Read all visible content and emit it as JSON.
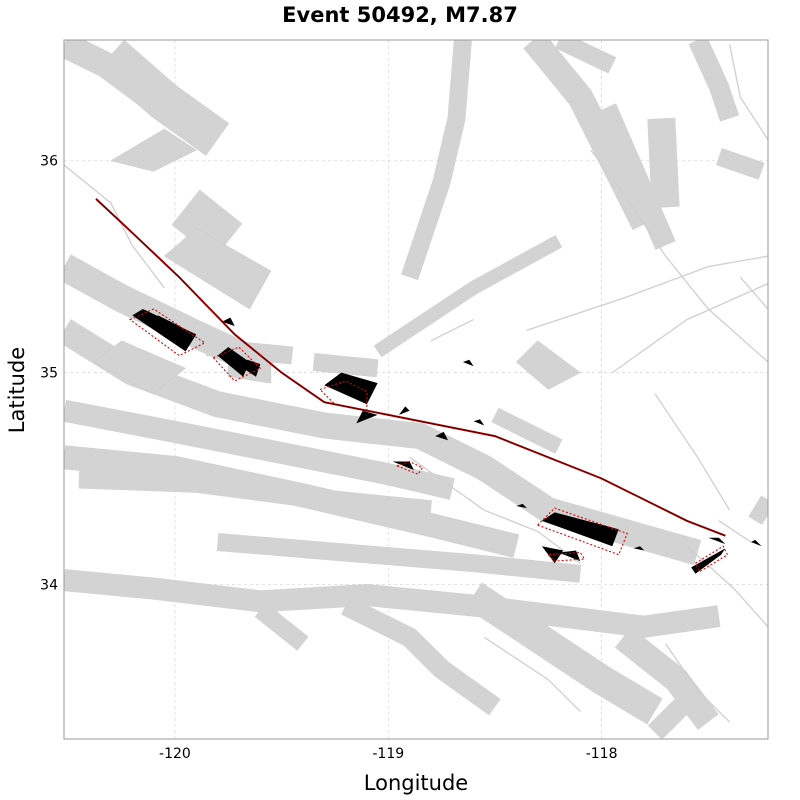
{
  "figure": {
    "title": "Event 50492, M7.87",
    "xlabel": "Longitude",
    "ylabel": "Latitude"
  },
  "chart_data": {
    "type": "map",
    "title": "Event 50492, M7.87",
    "xlabel": "Longitude",
    "ylabel": "Latitude",
    "xlim": [
      -120.52,
      -117.22
    ],
    "ylim": [
      33.27,
      36.57
    ],
    "xticks": [
      -120,
      -119,
      -118
    ],
    "yticks": [
      34,
      35,
      36
    ],
    "xtick_labels": [
      "-120",
      "-119",
      "-118"
    ],
    "ytick_labels": [
      "34",
      "35",
      "36"
    ],
    "grid": true,
    "colors": {
      "fault_zones": "#d3d3d3",
      "fault_traces": "#cfcfcf",
      "slip_patches": "#000000",
      "patch_outlines": "#e00000",
      "rupture_trace": "#b30000"
    },
    "fault_zones": [
      {
        "w": 26,
        "pts": [
          [
            -120.52,
            36.55
          ],
          [
            -120.32,
            36.45
          ],
          [
            -120.12,
            36.3
          ]
        ]
      },
      {
        "w": 40,
        "pts": [
          [
            -120.3,
            36.5
          ],
          [
            -120.05,
            36.28
          ],
          [
            -119.8,
            36.1
          ]
        ]
      },
      {
        "w": 45,
        "pts": [
          [
            -119.95,
            35.78
          ],
          [
            -119.75,
            35.62
          ]
        ]
      },
      {
        "w": 28,
        "pts": [
          [
            -120.52,
            35.5
          ],
          [
            -120.25,
            35.35
          ],
          [
            -119.9,
            35.18
          ],
          [
            -119.55,
            35.02
          ]
        ]
      },
      {
        "w": 26,
        "pts": [
          [
            -120.52,
            35.2
          ],
          [
            -120.2,
            35.0
          ],
          [
            -119.8,
            34.85
          ],
          [
            -119.3,
            34.75
          ],
          [
            -118.85,
            34.7
          ],
          [
            -118.55,
            34.55
          ],
          [
            -118.25,
            34.35
          ],
          [
            -117.9,
            34.25
          ],
          [
            -117.55,
            34.15
          ]
        ]
      },
      {
        "w": 22,
        "pts": [
          [
            -120.52,
            34.82
          ],
          [
            -120.0,
            34.72
          ],
          [
            -119.5,
            34.62
          ],
          [
            -119.0,
            34.52
          ],
          [
            -118.7,
            34.45
          ]
        ]
      },
      {
        "w": 24,
        "pts": [
          [
            -120.52,
            34.6
          ],
          [
            -120.0,
            34.55
          ],
          [
            -119.4,
            34.42
          ],
          [
            -118.8,
            34.28
          ],
          [
            -118.4,
            34.18
          ]
        ]
      },
      {
        "w": 20,
        "pts": [
          [
            -120.45,
            34.5
          ],
          [
            -119.9,
            34.48
          ],
          [
            -119.3,
            34.4
          ],
          [
            -118.8,
            34.35
          ]
        ]
      },
      {
        "w": 22,
        "pts": [
          [
            -120.52,
            34.02
          ],
          [
            -120.1,
            33.98
          ],
          [
            -119.6,
            33.92
          ],
          [
            -119.1,
            33.95
          ],
          [
            -118.6,
            33.9
          ],
          [
            -118.2,
            33.85
          ],
          [
            -117.8,
            33.8
          ],
          [
            -117.45,
            33.85
          ]
        ]
      },
      {
        "w": 18,
        "pts": [
          [
            -119.8,
            34.2
          ],
          [
            -119.2,
            34.15
          ],
          [
            -118.6,
            34.1
          ],
          [
            -118.1,
            34.05
          ]
        ]
      },
      {
        "w": 20,
        "pts": [
          [
            -119.2,
            33.9
          ],
          [
            -118.9,
            33.75
          ],
          [
            -118.75,
            33.6
          ],
          [
            -118.5,
            33.42
          ]
        ]
      },
      {
        "w": 18,
        "pts": [
          [
            -119.6,
            33.88
          ],
          [
            -119.4,
            33.72
          ]
        ]
      },
      {
        "w": 30,
        "pts": [
          [
            -118.6,
            33.95
          ],
          [
            -118.3,
            33.75
          ],
          [
            -118.0,
            33.55
          ],
          [
            -117.75,
            33.4
          ]
        ]
      },
      {
        "w": 26,
        "pts": [
          [
            -117.9,
            33.75
          ],
          [
            -117.65,
            33.55
          ],
          [
            -117.5,
            33.35
          ]
        ]
      },
      {
        "w": 20,
        "pts": [
          [
            -117.75,
            33.3
          ],
          [
            -117.6,
            33.45
          ]
        ]
      },
      {
        "w": 18,
        "pts": [
          [
            -119.35,
            35.05
          ],
          [
            -119.05,
            35.02
          ]
        ]
      },
      {
        "w": 16,
        "pts": [
          [
            -118.5,
            34.8
          ],
          [
            -118.2,
            34.65
          ]
        ]
      },
      {
        "w": 18,
        "pts": [
          [
            -119.85,
            35.12
          ],
          [
            -119.45,
            35.08
          ]
        ]
      },
      {
        "w": 14,
        "pts": [
          [
            -119.05,
            35.1
          ],
          [
            -118.6,
            35.4
          ],
          [
            -118.2,
            35.62
          ]
        ]
      },
      {
        "w": 18,
        "pts": [
          [
            -118.65,
            36.57
          ],
          [
            -118.68,
            36.2
          ],
          [
            -118.75,
            35.9
          ],
          [
            -118.9,
            35.45
          ]
        ]
      },
      {
        "w": 26,
        "pts": [
          [
            -118.32,
            36.57
          ],
          [
            -118.1,
            36.3
          ],
          [
            -117.95,
            36.0
          ],
          [
            -117.8,
            35.7
          ]
        ]
      },
      {
        "w": 22,
        "pts": [
          [
            -117.98,
            36.25
          ],
          [
            -117.85,
            35.95
          ],
          [
            -117.7,
            35.6
          ]
        ]
      },
      {
        "w": 28,
        "pts": [
          [
            -117.72,
            36.2
          ],
          [
            -117.7,
            35.78
          ]
        ]
      },
      {
        "w": 20,
        "pts": [
          [
            -117.55,
            36.57
          ],
          [
            -117.45,
            36.35
          ],
          [
            -117.4,
            36.2
          ]
        ]
      },
      {
        "w": 18,
        "pts": [
          [
            -117.45,
            36.02
          ],
          [
            -117.25,
            35.95
          ]
        ]
      },
      {
        "w": 18,
        "pts": [
          [
            -118.2,
            36.57
          ],
          [
            -117.95,
            36.45
          ]
        ]
      },
      {
        "w": 16,
        "pts": [
          [
            -117.28,
            34.3
          ],
          [
            -117.22,
            34.4
          ]
        ]
      }
    ],
    "fault_polygons": [
      [
        [
          -119.9,
          35.68
        ],
        [
          -119.55,
          35.48
        ],
        [
          -119.65,
          35.3
        ],
        [
          -120.05,
          35.55
        ]
      ],
      [
        [
          -120.05,
          36.15
        ],
        [
          -120.3,
          36.0
        ],
        [
          -120.1,
          35.95
        ],
        [
          -119.9,
          36.05
        ]
      ],
      [
        [
          -118.3,
          35.15
        ],
        [
          -118.1,
          35.0
        ],
        [
          -118.25,
          34.92
        ],
        [
          -118.4,
          35.05
        ]
      ],
      [
        [
          -120.38,
          35.05
        ],
        [
          -120.1,
          34.9
        ],
        [
          -119.95,
          35.02
        ],
        [
          -120.25,
          35.15
        ]
      ],
      [
        [
          -119.75,
          35.12
        ],
        [
          -119.55,
          35.08
        ],
        [
          -119.55,
          34.95
        ],
        [
          -119.75,
          34.98
        ]
      ]
    ],
    "fault_traces": [
      [
        [
          -120.52,
          35.98
        ],
        [
          -120.3,
          35.8
        ],
        [
          -120.2,
          35.6
        ],
        [
          -120.05,
          35.4
        ]
      ],
      [
        [
          -117.4,
          36.55
        ],
        [
          -117.35,
          36.3
        ],
        [
          -117.22,
          36.1
        ]
      ],
      [
        [
          -118.05,
          36.05
        ],
        [
          -117.9,
          35.85
        ],
        [
          -117.7,
          35.55
        ],
        [
          -117.5,
          35.3
        ],
        [
          -117.22,
          35.05
        ]
      ],
      [
        [
          -118.35,
          35.2
        ],
        [
          -117.9,
          35.35
        ],
        [
          -117.5,
          35.5
        ],
        [
          -117.22,
          35.55
        ]
      ],
      [
        [
          -117.95,
          35.0
        ],
        [
          -117.6,
          35.25
        ],
        [
          -117.22,
          35.42
        ]
      ],
      [
        [
          -117.35,
          35.45
        ],
        [
          -117.22,
          35.3
        ]
      ],
      [
        [
          -117.75,
          34.9
        ],
        [
          -117.55,
          34.6
        ],
        [
          -117.4,
          34.35
        ]
      ],
      [
        [
          -118.9,
          34.6
        ],
        [
          -118.55,
          34.35
        ],
        [
          -118.3,
          34.25
        ],
        [
          -118.1,
          34.1
        ]
      ],
      [
        [
          -117.6,
          34.18
        ],
        [
          -117.38,
          33.98
        ],
        [
          -117.22,
          33.8
        ]
      ],
      [
        [
          -117.7,
          33.72
        ],
        [
          -117.55,
          33.5
        ],
        [
          -117.4,
          33.35
        ]
      ],
      [
        [
          -118.55,
          33.75
        ],
        [
          -118.25,
          33.55
        ],
        [
          -118.1,
          33.4
        ]
      ],
      [
        [
          -117.45,
          34.3
        ],
        [
          -117.3,
          34.2
        ]
      ],
      [
        [
          -118.8,
          35.15
        ],
        [
          -118.6,
          35.25
        ]
      ]
    ],
    "slip_patches": [
      [
        [
          -120.2,
          35.27
        ],
        [
          -119.95,
          35.1
        ],
        [
          -119.9,
          35.18
        ],
        [
          -120.15,
          35.3
        ]
      ],
      [
        [
          -120.12,
          35.22
        ],
        [
          -120.02,
          35.16
        ],
        [
          -119.98,
          35.22
        ],
        [
          -120.08,
          35.27
        ]
      ],
      [
        [
          -119.8,
          35.08
        ],
        [
          -119.68,
          34.98
        ],
        [
          -119.65,
          35.05
        ],
        [
          -119.75,
          35.12
        ]
      ],
      [
        [
          -119.68,
          35.02
        ],
        [
          -119.62,
          34.98
        ],
        [
          -119.6,
          35.04
        ],
        [
          -119.66,
          35.06
        ]
      ],
      [
        [
          -119.3,
          34.94
        ],
        [
          -119.1,
          34.85
        ],
        [
          -119.05,
          34.95
        ],
        [
          -119.22,
          35.0
        ]
      ],
      [
        [
          -119.05,
          34.8
        ],
        [
          -119.15,
          34.76
        ],
        [
          -119.12,
          34.82
        ]
      ],
      [
        [
          -118.98,
          34.58
        ],
        [
          -118.88,
          34.54
        ],
        [
          -118.9,
          34.58
        ]
      ],
      [
        [
          -118.28,
          34.3
        ],
        [
          -117.95,
          34.18
        ],
        [
          -117.92,
          34.26
        ],
        [
          -118.22,
          34.34
        ]
      ],
      [
        [
          -118.2,
          34.15
        ],
        [
          -118.1,
          34.11
        ],
        [
          -118.12,
          34.16
        ]
      ],
      [
        [
          -118.28,
          34.18
        ],
        [
          -118.22,
          34.1
        ],
        [
          -118.18,
          34.16
        ]
      ],
      [
        [
          -117.58,
          34.08
        ],
        [
          -117.42,
          34.17
        ],
        [
          -117.44,
          34.14
        ],
        [
          -117.56,
          34.05
        ]
      ]
    ],
    "small_patches": [
      [
        [
          -119.78,
          35.24
        ],
        [
          -119.72,
          35.22
        ],
        [
          -119.74,
          35.26
        ]
      ],
      [
        [
          -118.78,
          34.7
        ],
        [
          -118.72,
          34.68
        ],
        [
          -118.74,
          34.72
        ]
      ],
      [
        [
          -118.9,
          34.82
        ],
        [
          -118.95,
          34.8
        ],
        [
          -118.92,
          34.84
        ]
      ],
      [
        [
          -118.6,
          34.77
        ],
        [
          -118.55,
          34.75
        ],
        [
          -118.57,
          34.78
        ]
      ],
      [
        [
          -118.65,
          35.05
        ],
        [
          -118.6,
          35.03
        ],
        [
          -118.62,
          35.06
        ]
      ],
      [
        [
          -118.4,
          34.37
        ],
        [
          -118.35,
          34.36
        ],
        [
          -118.37,
          34.38
        ]
      ],
      [
        [
          -117.85,
          34.17
        ],
        [
          -117.8,
          34.16
        ],
        [
          -117.82,
          34.18
        ]
      ],
      [
        [
          -117.5,
          34.22
        ],
        [
          -117.42,
          34.19
        ],
        [
          -117.45,
          34.22
        ]
      ],
      [
        [
          -117.3,
          34.2
        ],
        [
          -117.25,
          34.18
        ],
        [
          -117.28,
          34.21
        ]
      ]
    ],
    "patch_outlines": [
      [
        [
          -120.21,
          35.25
        ],
        [
          -120.1,
          35.3
        ],
        [
          -119.86,
          35.14
        ],
        [
          -119.98,
          35.08
        ]
      ],
      [
        [
          -119.82,
          35.07
        ],
        [
          -119.7,
          35.12
        ],
        [
          -119.6,
          35.02
        ],
        [
          -119.72,
          34.96
        ]
      ],
      [
        [
          -119.32,
          34.92
        ],
        [
          -119.2,
          34.96
        ],
        [
          -119.1,
          34.91
        ],
        [
          -119.1,
          34.82
        ],
        [
          -119.25,
          34.85
        ]
      ],
      [
        [
          -118.96,
          34.56
        ],
        [
          -118.9,
          34.58
        ],
        [
          -118.84,
          34.55
        ],
        [
          -118.86,
          34.52
        ]
      ],
      [
        [
          -118.3,
          34.28
        ],
        [
          -118.22,
          34.36
        ],
        [
          -117.88,
          34.24
        ],
        [
          -117.92,
          34.14
        ]
      ],
      [
        [
          -118.25,
          34.14
        ],
        [
          -118.22,
          34.11
        ],
        [
          -118.08,
          34.12
        ],
        [
          -118.1,
          34.15
        ]
      ],
      [
        [
          -117.56,
          34.1
        ],
        [
          -117.43,
          34.18
        ],
        [
          -117.41,
          34.14
        ],
        [
          -117.54,
          34.06
        ]
      ]
    ],
    "rupture_trace": [
      [
        -120.37,
        35.82
      ],
      [
        -120.2,
        35.66
      ],
      [
        -119.98,
        35.45
      ],
      [
        -119.72,
        35.18
      ],
      [
        -119.5,
        35.0
      ],
      [
        -119.3,
        34.86
      ],
      [
        -119.0,
        34.8
      ],
      [
        -118.5,
        34.7
      ],
      [
        -118.0,
        34.5
      ],
      [
        -117.6,
        34.3
      ],
      [
        -117.42,
        34.23
      ]
    ]
  }
}
